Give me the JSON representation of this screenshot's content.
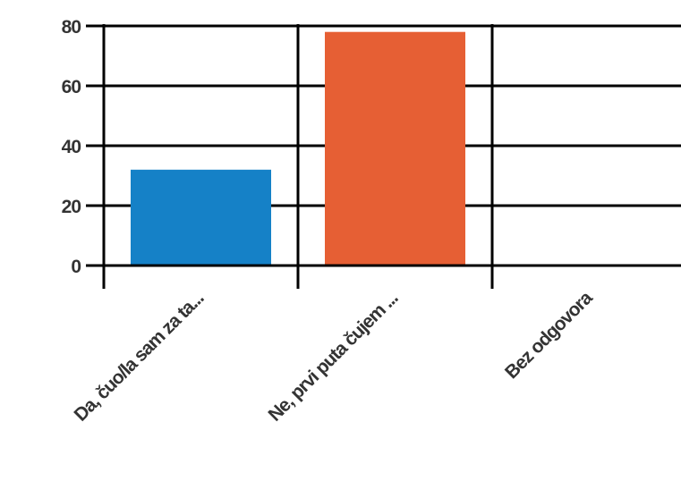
{
  "chart_data": {
    "type": "bar",
    "categories": [
      "Da, čuo/la sam za ta...",
      "Ne, prvi puta čujem ...",
      "Bez odgovora"
    ],
    "values": [
      32,
      78,
      0
    ],
    "colors": [
      "#1581c7",
      "#e65f34",
      "#999999"
    ],
    "ylim": [
      0,
      80
    ],
    "yticks": [
      0,
      20,
      40,
      60,
      80
    ],
    "grid": true,
    "title": "",
    "xlabel": "",
    "ylabel": ""
  }
}
